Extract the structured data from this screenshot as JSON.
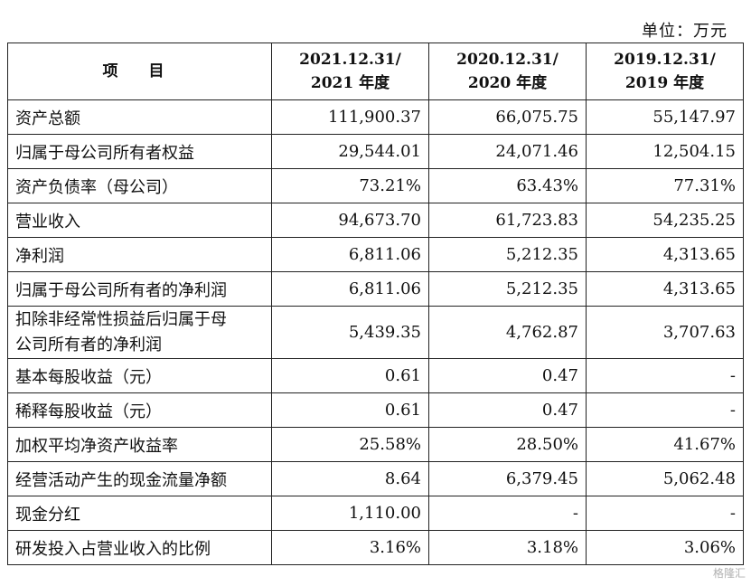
{
  "unit_label": "单位：万元",
  "header": {
    "item": "项 目",
    "cols": [
      {
        "l1": "2021.12.31/",
        "l2": "2021 年度"
      },
      {
        "l1": "2020.12.31/",
        "l2": "2020 年度"
      },
      {
        "l1": "2019.12.31/",
        "l2": "2019 年度"
      }
    ]
  },
  "rows": [
    {
      "label": "资产总额",
      "v": [
        "111,900.37",
        "66,075.75",
        "55,147.97"
      ]
    },
    {
      "label": "归属于母公司所有者权益",
      "v": [
        "29,544.01",
        "24,071.46",
        "12,504.15"
      ]
    },
    {
      "label": "资产负债率（母公司）",
      "v": [
        "73.21%",
        "63.43%",
        "77.31%"
      ]
    },
    {
      "label": "营业收入",
      "v": [
        "94,673.70",
        "61,723.83",
        "54,235.25"
      ]
    },
    {
      "label": "净利润",
      "v": [
        "6,811.06",
        "5,212.35",
        "4,313.65"
      ]
    },
    {
      "label": "归属于母公司所有者的净利润",
      "v": [
        "6,811.06",
        "5,212.35",
        "4,313.65"
      ]
    },
    {
      "label": "扣除非经常性损益后归属于母公司所有者的净利润",
      "label_l1": "扣除非经常性损益后归属于母",
      "label_l2": "公司所有者的净利润",
      "v": [
        "5,439.35",
        "4,762.87",
        "3,707.63"
      ]
    },
    {
      "label": "基本每股收益（元）",
      "v": [
        "0.61",
        "0.47",
        "-"
      ]
    },
    {
      "label": "稀释每股收益（元）",
      "v": [
        "0.61",
        "0.47",
        "-"
      ]
    },
    {
      "label": "加权平均净资产收益率",
      "v": [
        "25.58%",
        "28.50%",
        "41.67%"
      ]
    },
    {
      "label": "经营活动产生的现金流量净额",
      "v": [
        "8.64",
        "6,379.45",
        "5,062.48"
      ]
    },
    {
      "label": "现金分红",
      "v": [
        "1,110.00",
        "-",
        "-"
      ]
    },
    {
      "label": "研发投入占营业收入的比例",
      "v": [
        "3.16%",
        "3.18%",
        "3.06%"
      ]
    }
  ],
  "watermark": "格隆汇"
}
